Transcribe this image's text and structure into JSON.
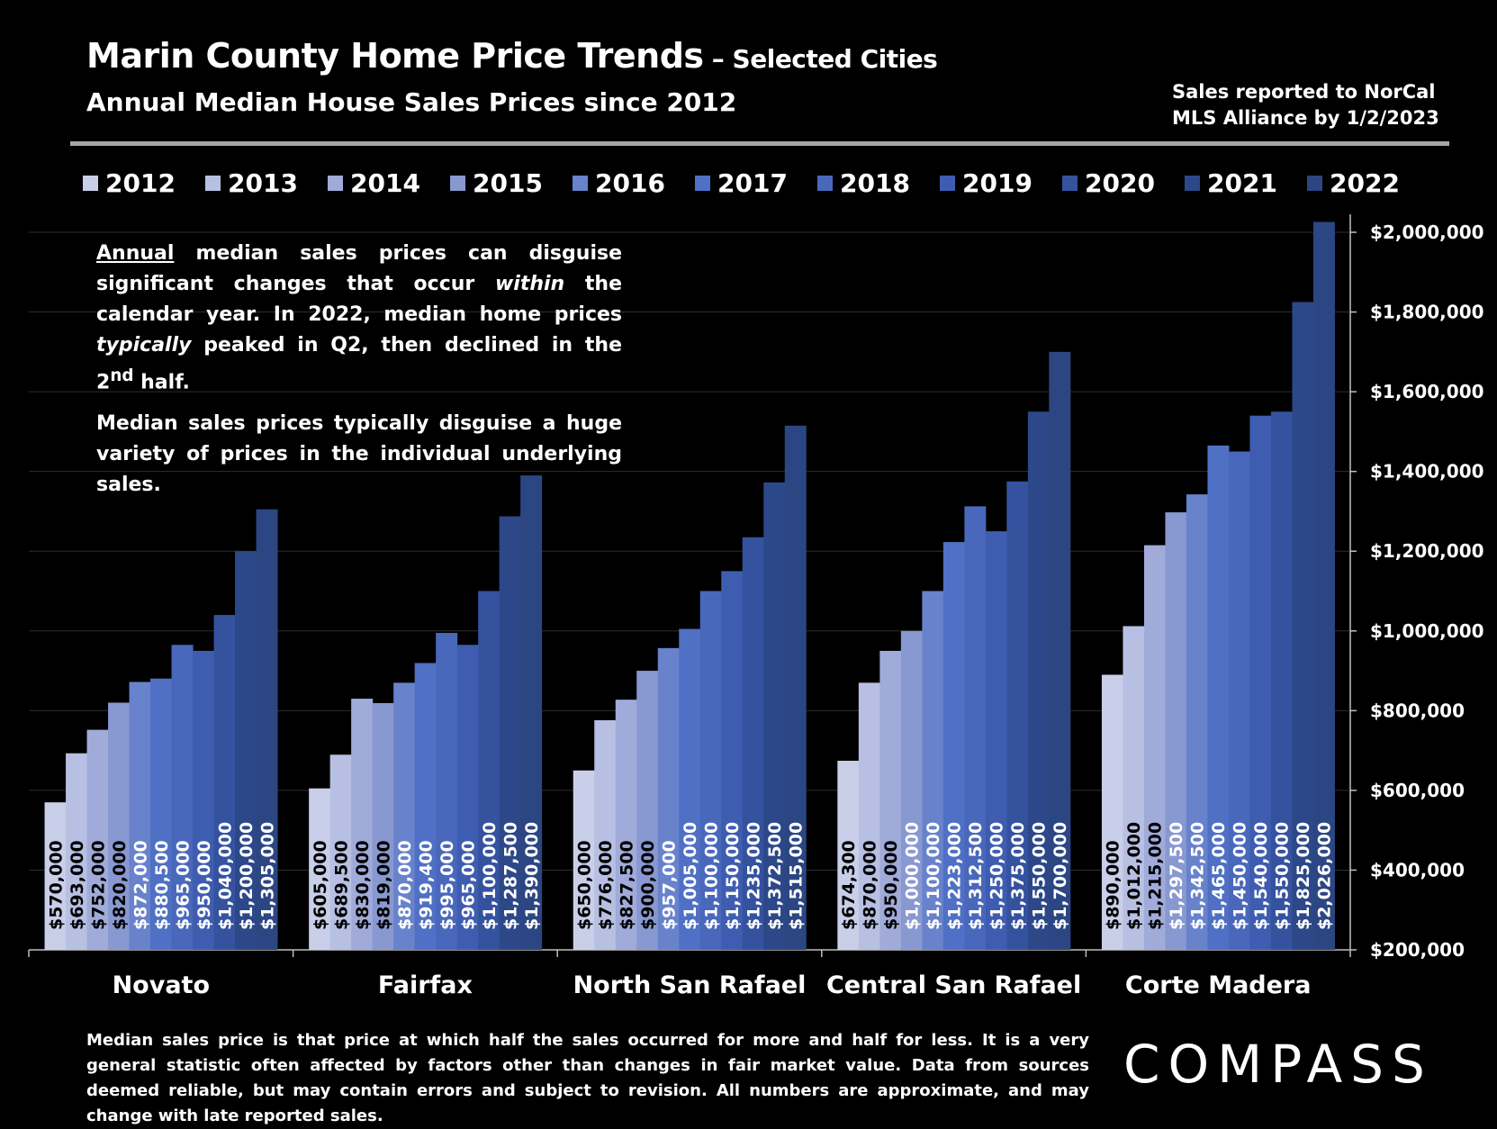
{
  "header": {
    "title_main": "Marin County Home Price Trends",
    "title_suffix": " – Selected Cities",
    "subtitle": "Annual Median House Sales Prices since 2012",
    "source_line1": "Sales reported to NorCal",
    "source_line2": "MLS Alliance by 1/2/2023"
  },
  "note": {
    "p1_underlined": "Annual",
    "p1_a": " median sales prices can disguise significant changes that occur ",
    "p1_within": "within",
    "p1_b": " the calendar year. In 2022, median home prices ",
    "p1_typically": "typically",
    "p1_c": " peaked in Q2, then declined in the 2",
    "p1_sup": "nd",
    "p1_d": " half.",
    "p2": "Median sales prices typically disguise a huge variety of prices in the individual underlying sales."
  },
  "footer": "Median sales price is that price at which half the sales occurred for more and half for less. It is a very general statistic often affected by factors other than changes in fair market value. Data from sources deemed reliable, but may contain errors and subject to revision. All numbers are approximate, and may change with late reported sales.",
  "logo": "COMPASS",
  "colors": {
    "2012": "#c9cfe8",
    "2013": "#b7c0e2",
    "2014": "#a0abd9",
    "2015": "#8898d0",
    "2016": "#6882cc",
    "2017": "#4f70c4",
    "2018": "#4a68bb",
    "2019": "#3f5db0",
    "2020": "#35529f",
    "2021": "#2d4888",
    "2022": "#2b4682"
  },
  "chart_data": {
    "type": "bar",
    "title": "Marin County Home Price Trends – Selected Cities",
    "categories": [
      "Novato",
      "Fairfax",
      "North San Rafael",
      "Central San Rafael",
      "Corte Madera"
    ],
    "ylim": [
      200000,
      2000000
    ],
    "yticks": [
      "$200,000",
      "$400,000",
      "$600,000",
      "$800,000",
      "$1,000,000",
      "$1,200,000",
      "$1,400,000",
      "$1,600,000",
      "$1,800,000",
      "$2,000,000"
    ],
    "legend_position": "top",
    "series": [
      {
        "name": "2012",
        "values": [
          570000,
          605000,
          650000,
          674300,
          890000
        ],
        "labels": [
          "$570,000",
          "$605,000",
          "$650,000",
          "$674,300",
          "$890,000"
        ]
      },
      {
        "name": "2013",
        "values": [
          693000,
          689500,
          776000,
          870000,
          1012000
        ],
        "labels": [
          "$693,000",
          "$689,500",
          "$776,000",
          "$870,000",
          "$1,012,000"
        ]
      },
      {
        "name": "2014",
        "values": [
          752000,
          830000,
          827500,
          950000,
          1215000
        ],
        "labels": [
          "$752,000",
          "$830,000",
          "$827,500",
          "$950,000",
          "$1,215,000"
        ]
      },
      {
        "name": "2015",
        "values": [
          820000,
          819000,
          900000,
          1000000,
          1297500
        ],
        "labels": [
          "$820,000",
          "$819,000",
          "$900,000",
          "$1,000,000",
          "$1,297,500"
        ]
      },
      {
        "name": "2016",
        "values": [
          872000,
          870000,
          957000,
          1100000,
          1342500
        ],
        "labels": [
          "$872,000",
          "$870,000",
          "$957,000",
          "$1,100,000",
          "$1,342,500"
        ]
      },
      {
        "name": "2017",
        "values": [
          880500,
          919400,
          1005000,
          1223000,
          1465000
        ],
        "labels": [
          "$880,500",
          "$919,400",
          "$1,005,000",
          "$1,223,000",
          "$1,465,000"
        ]
      },
      {
        "name": "2018",
        "values": [
          965000,
          995000,
          1100000,
          1312500,
          1450000
        ],
        "labels": [
          "$965,000",
          "$995,000",
          "$1,100,000",
          "$1,312,500",
          "$1,450,000"
        ]
      },
      {
        "name": "2019",
        "values": [
          950000,
          965000,
          1150000,
          1250000,
          1540000
        ],
        "labels": [
          "$950,000",
          "$965,000",
          "$1,150,000",
          "$1,250,000",
          "$1,540,000"
        ]
      },
      {
        "name": "2020",
        "values": [
          1040000,
          1100000,
          1235000,
          1375000,
          1550000
        ],
        "labels": [
          "$1,040,000",
          "$1,100,000",
          "$1,235,000",
          "$1,375,000",
          "$1,550,000"
        ]
      },
      {
        "name": "2021",
        "values": [
          1200000,
          1287500,
          1372500,
          1550000,
          1825000
        ],
        "labels": [
          "$1,200,000",
          "$1,287,500",
          "$1,372,500",
          "$1,550,000",
          "$1,825,000"
        ]
      },
      {
        "name": "2022",
        "values": [
          1305000,
          1390000,
          1515000,
          1700000,
          2026000
        ],
        "labels": [
          "$1,305,000",
          "$1,390,000",
          "$1,515,000",
          "$1,700,000",
          "$2,026,000"
        ]
      }
    ]
  }
}
